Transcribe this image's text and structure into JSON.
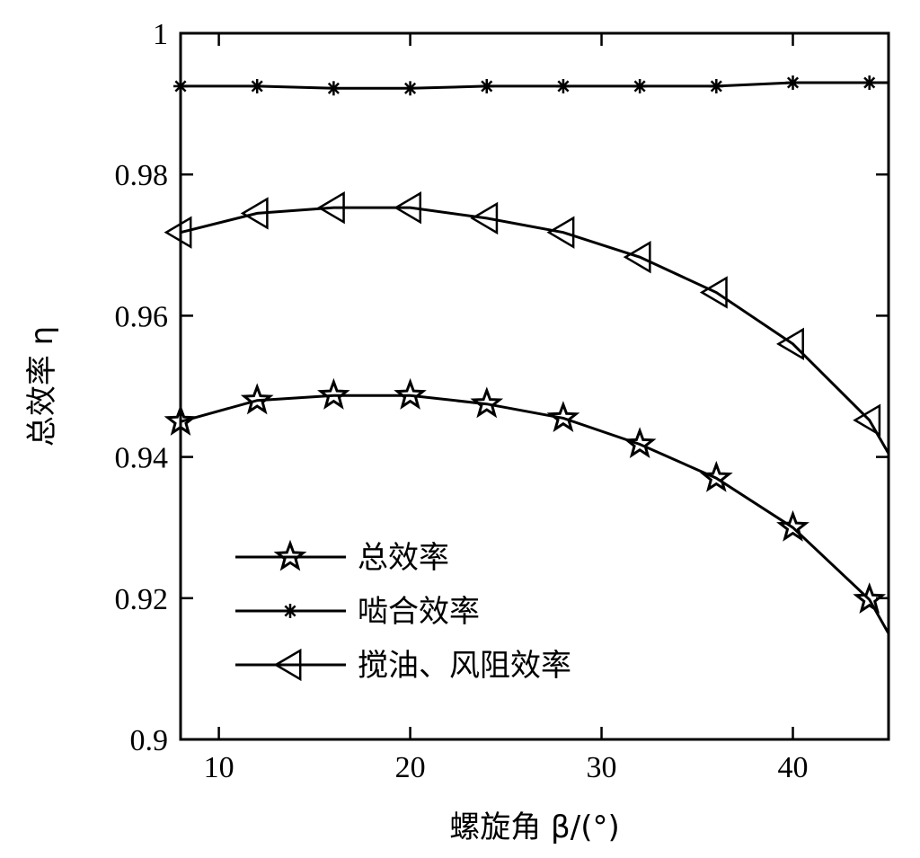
{
  "chart_data": {
    "type": "line",
    "xlabel": "螺旋角 β/(°)",
    "ylabel": "总效率 η",
    "xlim": [
      8,
      45
    ],
    "ylim": [
      0.9,
      1.0
    ],
    "xticks": [
      10,
      20,
      30,
      40
    ],
    "xtick_labels": [
      "10",
      "20",
      "30",
      "40"
    ],
    "yticks": [
      0.9,
      0.92,
      0.94,
      0.96,
      0.98,
      1.0
    ],
    "ytick_labels": [
      "0.9",
      "0.92",
      "0.94",
      "0.96",
      "0.98",
      "1"
    ],
    "grid": false,
    "legend_position": "bottom-left",
    "x": [
      8,
      12,
      16,
      20,
      24,
      28,
      32,
      36,
      40,
      44,
      45
    ],
    "series": [
      {
        "name": "总效率",
        "marker": "pentagram",
        "values": [
          0.945,
          0.948,
          0.9487,
          0.9487,
          0.9475,
          0.9455,
          0.9418,
          0.937,
          0.93,
          0.9198,
          0.915
        ]
      },
      {
        "name": "啮合效率",
        "marker": "asterisk",
        "values": [
          0.9925,
          0.9925,
          0.9922,
          0.9922,
          0.9925,
          0.9925,
          0.9925,
          0.9925,
          0.993,
          0.993,
          0.993
        ]
      },
      {
        "name": "搅油、风阻效率",
        "marker": "triangle-left",
        "values": [
          0.9718,
          0.9745,
          0.9753,
          0.9753,
          0.9738,
          0.9718,
          0.9683,
          0.9633,
          0.956,
          0.9452,
          0.9405
        ]
      }
    ]
  }
}
